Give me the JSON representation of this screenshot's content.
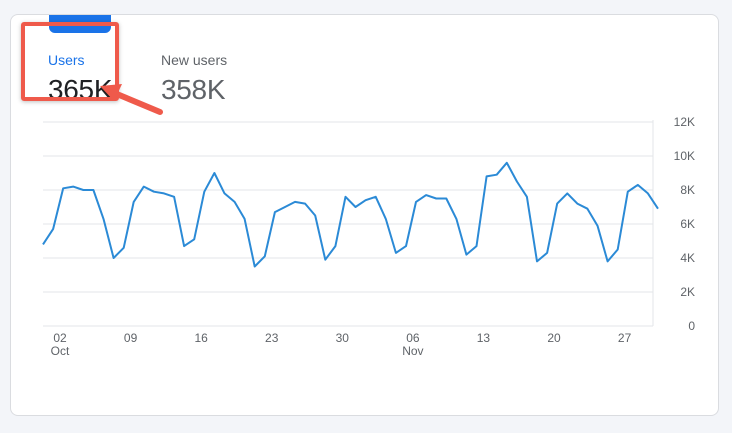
{
  "metrics": {
    "users": {
      "label": "Users",
      "value": "365K"
    },
    "new_users": {
      "label": "New users",
      "value": "358K"
    }
  },
  "colors": {
    "accent": "#1a73e8",
    "line": "#2b8ad6",
    "annotation": "#ef5a4b"
  },
  "chart_data": {
    "type": "line",
    "series": [
      {
        "name": "Users",
        "values": [
          4800,
          5700,
          8100,
          8200,
          8000,
          8000,
          6300,
          4000,
          4600,
          7300,
          8200,
          7900,
          7800,
          7600,
          4700,
          5100,
          7900,
          9000,
          7800,
          7300,
          6300,
          3500,
          4100,
          6700,
          7000,
          7300,
          7200,
          6500,
          3900,
          4700,
          7600,
          7000,
          7400,
          7600,
          6300,
          4300,
          4700,
          7300,
          7700,
          7500,
          7500,
          6300,
          4200,
          4700,
          8800,
          8900,
          9600,
          8500,
          7600,
          3800,
          4300,
          7200,
          7800,
          7200,
          6900,
          5900,
          3800,
          4500,
          7900,
          8300,
          7800,
          6900
        ]
      }
    ],
    "x_tick_labels": [
      "02",
      "09",
      "16",
      "23",
      "30",
      "06",
      "13",
      "20",
      "27"
    ],
    "x_tick_index": [
      0,
      7,
      14,
      21,
      28,
      35,
      42,
      49,
      56
    ],
    "x_month_labels": [
      {
        "label": "Oct",
        "index": 0
      },
      {
        "label": "Nov",
        "index": 35
      }
    ],
    "y_tick_labels": [
      "12K",
      "10K",
      "8K",
      "6K",
      "4K",
      "2K",
      "0"
    ],
    "ylim": [
      0,
      12000
    ],
    "grid": true
  }
}
